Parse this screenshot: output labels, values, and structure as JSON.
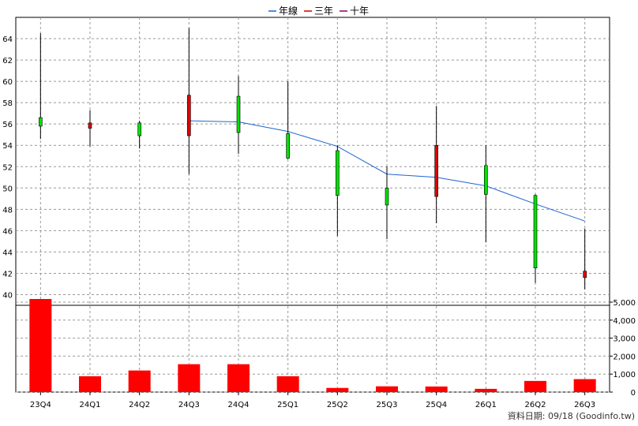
{
  "legend": {
    "items": [
      {
        "label": "年線",
        "color": "#1E64D2"
      },
      {
        "label": "三年",
        "color": "#CC0000"
      },
      {
        "label": "十年",
        "color": "#880066"
      }
    ]
  },
  "footer": {
    "text": "資料日期: 09/18  (Goodinfo.tw)"
  },
  "colors": {
    "up": "#E00000",
    "down": "#00E000",
    "volume": "#FF0000",
    "ma_line": "#1E64D2"
  },
  "chart_data": {
    "type": "candlestick",
    "categories": [
      "23Q4",
      "24Q1",
      "24Q2",
      "24Q3",
      "24Q4",
      "25Q1",
      "25Q2",
      "25Q3",
      "25Q4",
      "26Q1",
      "26Q2",
      "26Q3"
    ],
    "ohlc": [
      {
        "open": 56.6,
        "high": 64.5,
        "low": 54.6,
        "close": 55.8
      },
      {
        "open": 55.6,
        "high": 57.3,
        "low": 53.9,
        "close": 56.1
      },
      {
        "open": 56.1,
        "high": 56.3,
        "low": 53.7,
        "close": 54.9
      },
      {
        "open": 54.9,
        "high": 65.0,
        "low": 51.3,
        "close": 58.7
      },
      {
        "open": 58.6,
        "high": 60.5,
        "low": 53.2,
        "close": 55.2
      },
      {
        "open": 55.1,
        "high": 60.0,
        "low": 52.7,
        "close": 52.8
      },
      {
        "open": 53.5,
        "high": 54.0,
        "low": 45.5,
        "close": 49.3
      },
      {
        "open": 50.0,
        "high": 52.0,
        "low": 45.2,
        "close": 48.4
      },
      {
        "open": 49.2,
        "high": 57.7,
        "low": 46.7,
        "close": 54.0
      },
      {
        "open": 52.1,
        "high": 54.0,
        "low": 44.9,
        "close": 49.4
      },
      {
        "open": 49.3,
        "high": 49.4,
        "low": 41.1,
        "close": 42.5
      },
      {
        "open": 41.6,
        "high": 46.2,
        "low": 40.5,
        "close": 42.2
      }
    ],
    "ma_line": {
      "name": "年線",
      "values": [
        null,
        null,
        null,
        56.3,
        56.2,
        55.3,
        53.9,
        51.3,
        51.0,
        50.2,
        48.5,
        46.9
      ]
    },
    "volume": [
      5200,
      880,
      1200,
      1550,
      1550,
      880,
      230,
      320,
      310,
      180,
      620,
      720
    ],
    "price_axis": {
      "min": 39,
      "max": 66,
      "ticks": [
        40,
        42,
        44,
        46,
        48,
        50,
        52,
        54,
        56,
        58,
        60,
        62,
        64
      ]
    },
    "volume_axis": {
      "min": 0,
      "max": 5000,
      "ticks": [
        "0",
        "1,000",
        "2,000",
        "3,000",
        "4,000",
        "5,000"
      ]
    },
    "grid": true
  }
}
